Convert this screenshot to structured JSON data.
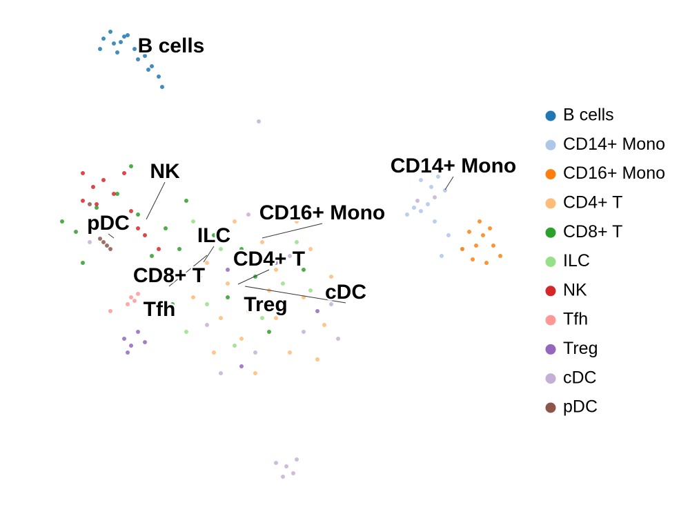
{
  "chart_data": {
    "type": "scatter",
    "xlim": [
      0,
      101.3
    ],
    "ylim": [
      0,
      76.1
    ],
    "legend": "right",
    "series": [
      {
        "name": "B cells",
        "color": "#1f77b4",
        "x": [
          15,
          16.5,
          18,
          17,
          19.5,
          21,
          22,
          23,
          23.5,
          16,
          18.5,
          20,
          21.5,
          17.5,
          14.5
        ],
        "values": [
          70.5,
          69.8,
          70.8,
          68.5,
          69,
          68,
          66.5,
          65,
          63.5,
          71.5,
          71,
          67.5,
          66,
          70,
          69
        ]
      },
      {
        "name": "CD14+ Mono",
        "color": "#aec7e8",
        "x": [
          61,
          62.5,
          63.5,
          64.5,
          62,
          60,
          63,
          65,
          67,
          64,
          61,
          59
        ],
        "values": [
          50,
          49,
          50.5,
          48.5,
          46.5,
          46,
          44,
          42,
          40,
          39,
          45.5,
          45
        ]
      },
      {
        "name": "CD16+ Mono",
        "color": "#ff7f0e",
        "x": [
          68,
          70,
          71.5,
          72.5,
          70.5,
          68.5,
          67,
          69,
          71,
          69.5
        ],
        "values": [
          42.5,
          42,
          40.5,
          39,
          38,
          38.5,
          40,
          40.5,
          43,
          44
        ]
      },
      {
        "name": "CD4+ T",
        "color": "#ffbb78",
        "x": [
          30,
          33,
          36,
          40,
          44,
          47,
          35,
          42,
          38,
          45,
          32,
          40,
          28,
          48,
          37,
          43,
          34,
          39,
          46,
          31
        ],
        "values": [
          38,
          35,
          31,
          37,
          33,
          29,
          27,
          25,
          41,
          40,
          30,
          30,
          33,
          36,
          22,
          44,
          44,
          34,
          24,
          25
        ]
      },
      {
        "name": "CD8+ T",
        "color": "#2ca02c",
        "x": [
          9,
          11,
          14,
          17,
          19,
          20,
          24,
          26,
          29,
          33,
          37,
          41,
          44,
          22,
          12,
          27,
          35,
          39,
          25,
          31
        ],
        "values": [
          44,
          42.5,
          46,
          48,
          52,
          45,
          43,
          40,
          36,
          33,
          36,
          31,
          37,
          39,
          38,
          47,
          40,
          28,
          32,
          42
        ]
      },
      {
        "name": "ILC",
        "color": "#98df8a",
        "x": [
          28,
          32,
          36,
          41,
          30,
          38,
          45,
          34,
          43,
          27
        ],
        "values": [
          44,
          40,
          38,
          35,
          32,
          30,
          34,
          26,
          41,
          28
        ]
      },
      {
        "name": "NK",
        "color": "#d62728",
        "x": [
          12,
          13.5,
          15,
          16.5,
          18,
          20,
          21,
          12,
          23,
          14,
          19
        ],
        "values": [
          51,
          49,
          50,
          48,
          51,
          43,
          42,
          47,
          40,
          46.5,
          45.5
        ]
      },
      {
        "name": "Tfh",
        "color": "#ff9896",
        "x": [
          19,
          19.5,
          18.5,
          20,
          16
        ],
        "values": [
          33,
          32.5,
          32,
          33.5,
          31
        ]
      },
      {
        "name": "Treg",
        "color": "#9467bd",
        "x": [
          18,
          19,
          20,
          21,
          18.5,
          35,
          40,
          46,
          33
        ],
        "values": [
          27,
          26,
          28,
          26.5,
          25,
          23,
          38,
          31,
          37
        ]
      },
      {
        "name": "cDC",
        "color": "#c5b0d5",
        "x": [
          40,
          41.5,
          42.5,
          41,
          43,
          13,
          30,
          37,
          44,
          48,
          36,
          42,
          32,
          49,
          60.5,
          63,
          37.5
        ],
        "values": [
          9,
          8.5,
          7.5,
          7,
          9.5,
          41,
          29,
          25,
          28,
          32,
          45,
          39,
          22,
          27,
          47,
          47.5,
          58.5
        ]
      },
      {
        "name": "pDC",
        "color": "#8c564b",
        "x": [
          15,
          15.5,
          14.5,
          16,
          13
        ],
        "values": [
          41,
          40.5,
          41.5,
          40,
          46.5
        ]
      }
    ]
  }
}
